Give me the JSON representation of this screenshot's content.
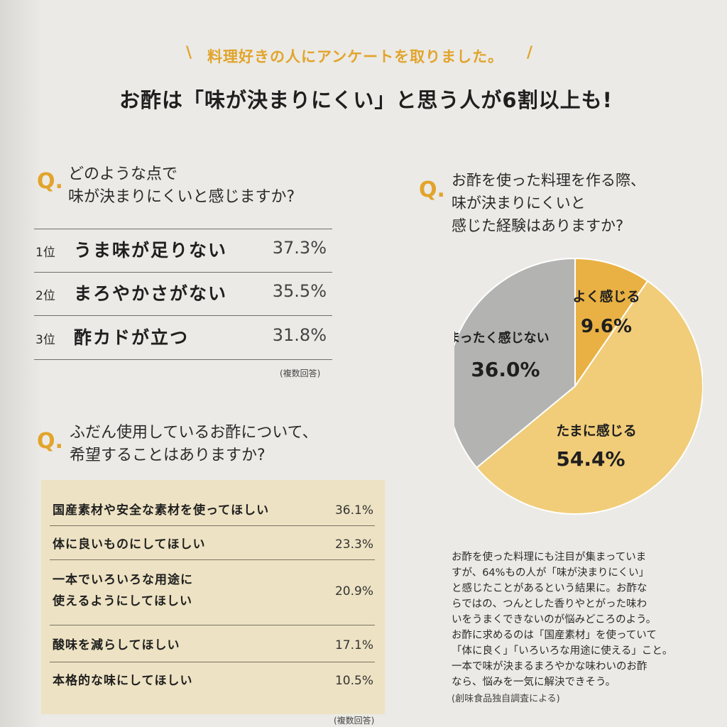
{
  "header": {
    "kicker": "料理好きの人にアンケートを取りました。",
    "headline": "お酢は「味が決まりにくい」と思う人が6割以上も!"
  },
  "q_mark": "Q.",
  "q1": {
    "question_lines": [
      "どのような点で",
      "味が決まりにくいと感じますか?"
    ],
    "items": [
      {
        "rank": "1位",
        "label": "うま味が足りない",
        "value": "37.3%"
      },
      {
        "rank": "2位",
        "label": "まろやかさがない",
        "value": "35.5%"
      },
      {
        "rank": "3位",
        "label": "酢カドが立つ",
        "value": "31.8%"
      }
    ],
    "note": "(複数回答)"
  },
  "q2": {
    "question_lines": [
      "お酢を使った料理を作る際、",
      "味が決まりにくいと",
      "感じた経験はありますか?"
    ],
    "chart_data": {
      "type": "pie",
      "slices": [
        {
          "label": "よく感じる",
          "value": 9.6,
          "value_text": "9.6%",
          "color": "#e9b143"
        },
        {
          "label": "たまに感じる",
          "value": 54.4,
          "value_text": "54.4%",
          "color": "#f1cd79"
        },
        {
          "label": "まったく感じない",
          "value": 36.0,
          "value_text": "36.0%",
          "color": "#b3b3b1"
        }
      ]
    }
  },
  "q3": {
    "question_lines": [
      "ふだん使用しているお酢について、",
      "希望することはありますか?"
    ],
    "items": [
      {
        "label_lines": [
          "国産素材や安全な素材を使ってほしい"
        ],
        "value": "36.1%"
      },
      {
        "label_lines": [
          "体に良いものにしてほしい"
        ],
        "value": "23.3%"
      },
      {
        "label_lines": [
          "一本でいろいろな用途に",
          "使えるようにしてほしい"
        ],
        "value": "20.9%"
      },
      {
        "label_lines": [
          "酸味を減らしてほしい"
        ],
        "value": "17.1%"
      },
      {
        "label_lines": [
          "本格的な味にしてほしい"
        ],
        "value": "10.5%"
      }
    ],
    "note": "(複数回答)"
  },
  "summary": {
    "lines": [
      "お酢を使った料理にも注目が集まっていま",
      "すが、64%もの人が「味が決まりにくい」",
      "と感じたことがあるという結果に。お酢な",
      "らではの、つんとした香りやとがった味わ",
      "いをうまくできないのが悩みどころのよう。",
      "お酢に求めるのは「国産素材」を使っていて",
      "「体に良く」「いろいろな用途に使える」こと。",
      "一本で味が決まるまろやかな味わいのお酢",
      "なら、悩みを一気に解決できそう。"
    ],
    "source": "(創味食品独自調査による)"
  }
}
